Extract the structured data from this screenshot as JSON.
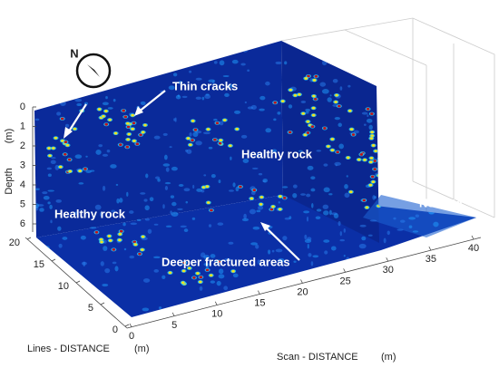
{
  "compass": {
    "label": "N"
  },
  "annotations": {
    "thin_cracks": "Thin cracks",
    "healthy_rock_back": "Healthy rock",
    "healthy_rock_left": "Healthy rock",
    "no_data": "No data",
    "deeper": "Deeper fractured areas"
  },
  "depth_axis": {
    "label": "Depth",
    "unit": "(m)",
    "ticks": [
      0,
      1,
      2,
      3,
      4,
      5,
      6
    ]
  },
  "lines_axis": {
    "label": "Lines - DISTANCE",
    "unit": "(m)",
    "ticks": [
      20,
      15,
      10,
      5,
      0
    ]
  },
  "scan_axis": {
    "label": "Scan - DISTANCE",
    "unit": "(m)",
    "ticks": [
      0,
      5,
      10,
      15,
      20,
      25,
      30,
      35,
      40
    ]
  }
}
